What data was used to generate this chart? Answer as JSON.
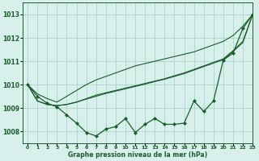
{
  "title": "Graphe pression niveau de la mer (hPa)",
  "background_color": "#d8f0ec",
  "grid_color": "#b0d8d0",
  "line_color": "#1a5c2a",
  "xlim": [
    -0.5,
    23
  ],
  "ylim": [
    1007.5,
    1013.5
  ],
  "xticks": [
    0,
    1,
    2,
    3,
    4,
    5,
    6,
    7,
    8,
    9,
    10,
    11,
    12,
    13,
    14,
    15,
    16,
    17,
    18,
    19,
    20,
    21,
    22,
    23
  ],
  "yticks": [
    1008,
    1009,
    1010,
    1011,
    1012,
    1013
  ],
  "x": [
    0,
    1,
    2,
    3,
    4,
    5,
    6,
    7,
    8,
    9,
    10,
    11,
    12,
    13,
    14,
    15,
    16,
    17,
    18,
    19,
    20,
    21,
    22,
    23
  ],
  "y_main": [
    1010.0,
    1009.5,
    1009.2,
    1009.05,
    1008.7,
    1008.35,
    1007.95,
    1007.8,
    1008.1,
    1008.2,
    1008.55,
    1007.95,
    1008.3,
    1008.55,
    1008.3,
    1008.3,
    1008.35,
    1009.3,
    1008.85,
    1009.3,
    1011.05,
    1011.35,
    1012.4,
    1013.0
  ],
  "y_smooth_top": [
    1010.0,
    1009.6,
    1009.4,
    1009.25,
    1009.5,
    1009.75,
    1010.0,
    1010.2,
    1010.35,
    1010.5,
    1010.65,
    1010.8,
    1010.9,
    1011.0,
    1011.1,
    1011.2,
    1011.3,
    1011.4,
    1011.55,
    1011.7,
    1011.85,
    1012.1,
    1012.5,
    1013.0
  ],
  "y_smooth_mid1": [
    1010.0,
    1009.3,
    1009.15,
    1009.1,
    1009.15,
    1009.25,
    1009.4,
    1009.55,
    1009.65,
    1009.75,
    1009.85,
    1009.95,
    1010.05,
    1010.15,
    1010.25,
    1010.38,
    1010.5,
    1010.65,
    1010.8,
    1010.95,
    1011.1,
    1011.45,
    1011.85,
    1013.0
  ],
  "y_smooth_mid2": [
    1010.0,
    1009.3,
    1009.15,
    1009.1,
    1009.15,
    1009.25,
    1009.38,
    1009.5,
    1009.62,
    1009.72,
    1009.82,
    1009.92,
    1010.02,
    1010.13,
    1010.23,
    1010.35,
    1010.47,
    1010.62,
    1010.77,
    1010.92,
    1011.07,
    1011.42,
    1011.8,
    1013.0
  ]
}
